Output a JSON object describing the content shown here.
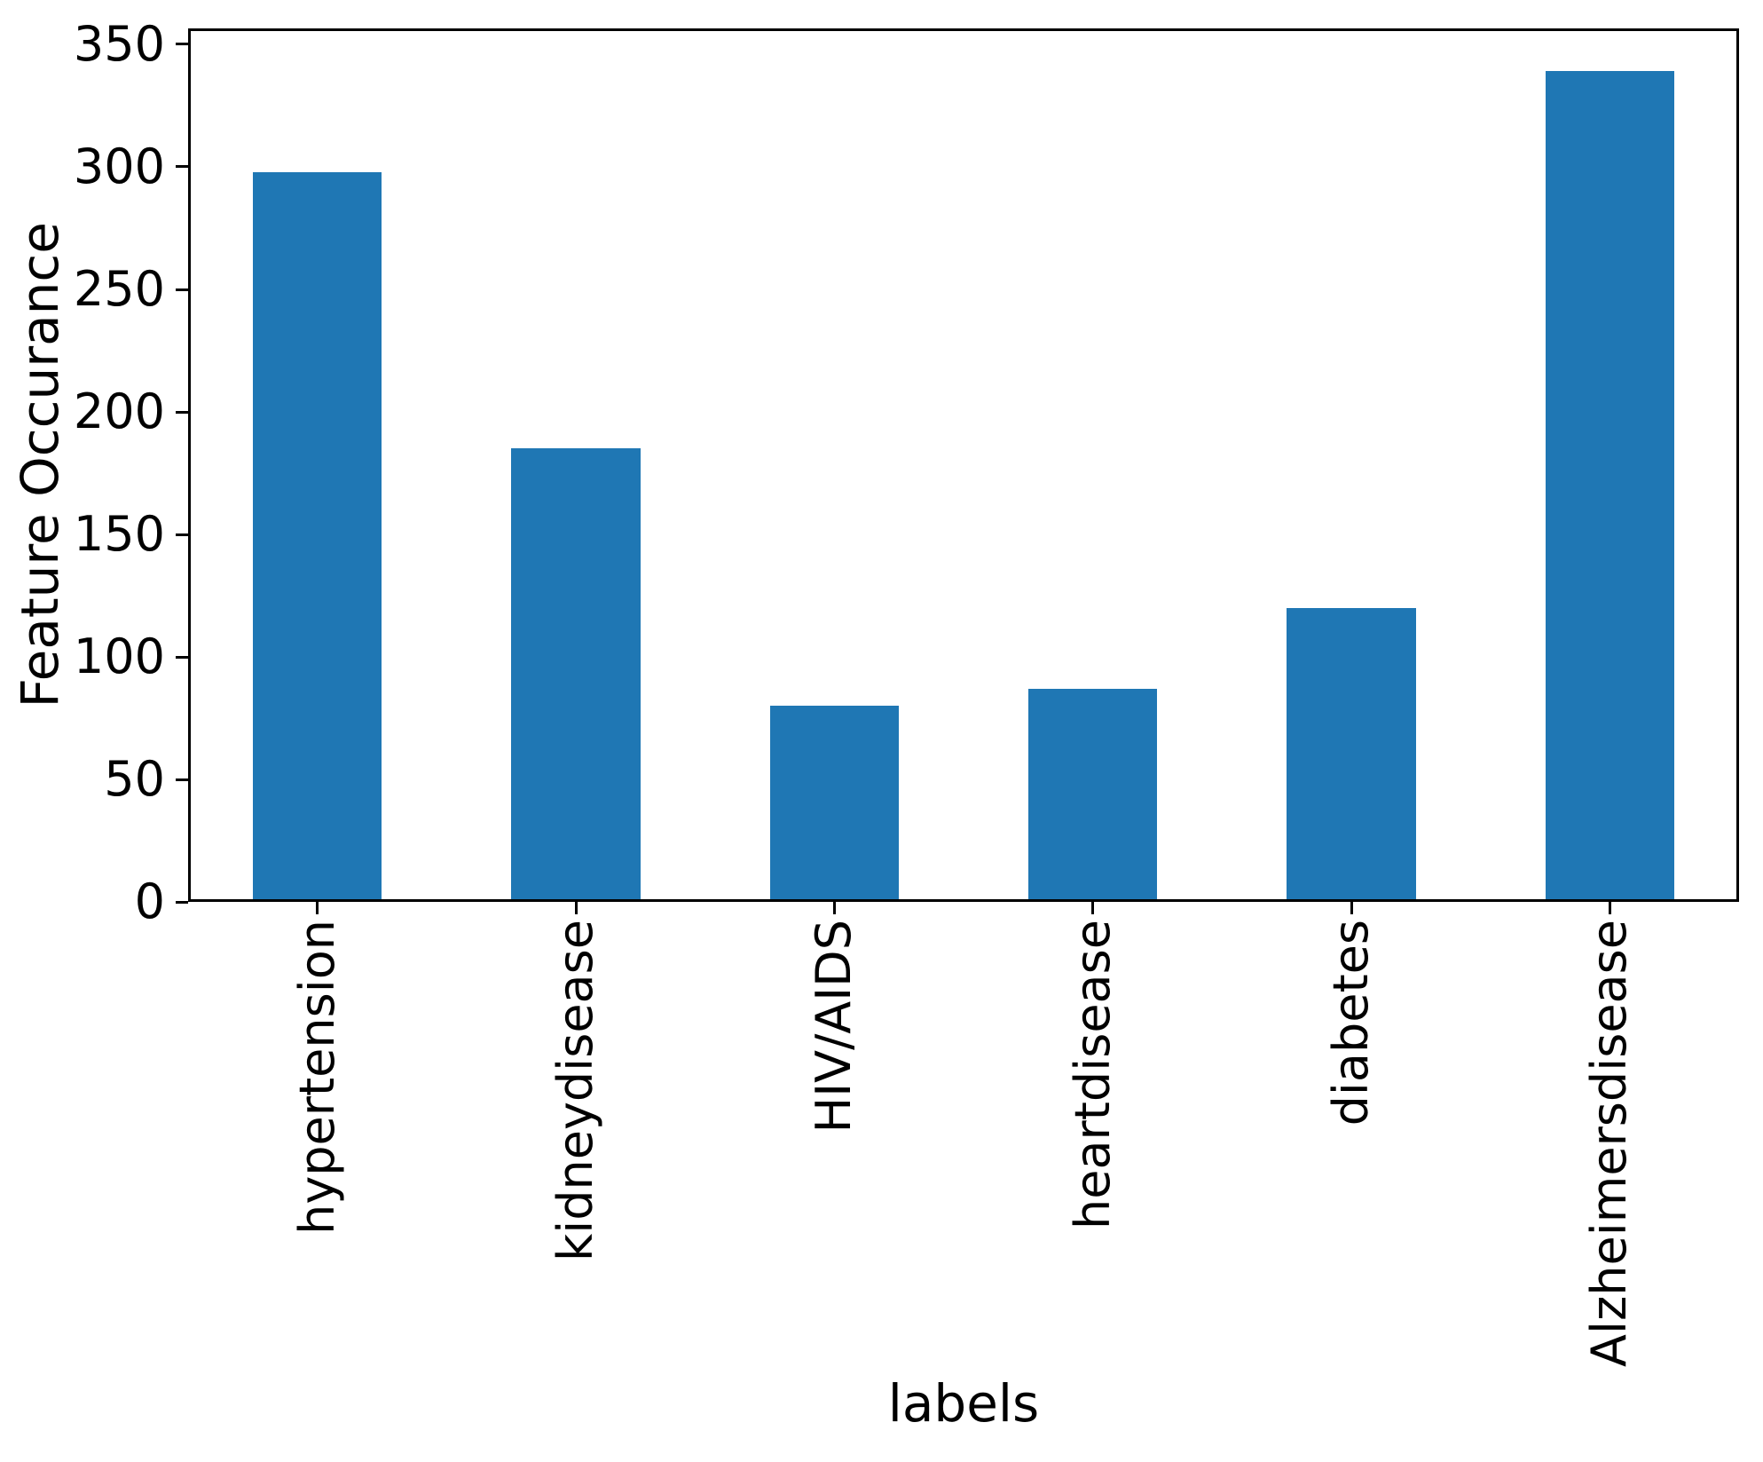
{
  "chart_data": {
    "type": "bar",
    "title": "",
    "xlabel": "labels",
    "ylabel": "Feature Occurance",
    "categories": [
      "hypertension",
      "kidneydisease",
      "HIV/AIDS",
      "heartdisease",
      "diabetes",
      "Alzheimersdisease"
    ],
    "values": [
      298,
      185,
      80,
      87,
      120,
      339
    ],
    "yticks": [
      0,
      50,
      100,
      150,
      200,
      250,
      300,
      350
    ],
    "ylim": [
      0,
      356.5
    ],
    "bar_color": "#1f77b4",
    "axis_color": "#000000",
    "text_color": "#000000",
    "background_color": "#ffffff",
    "grid": false,
    "legend": null,
    "bar_width_fraction": 0.5,
    "x_tick_rotation": 90
  }
}
